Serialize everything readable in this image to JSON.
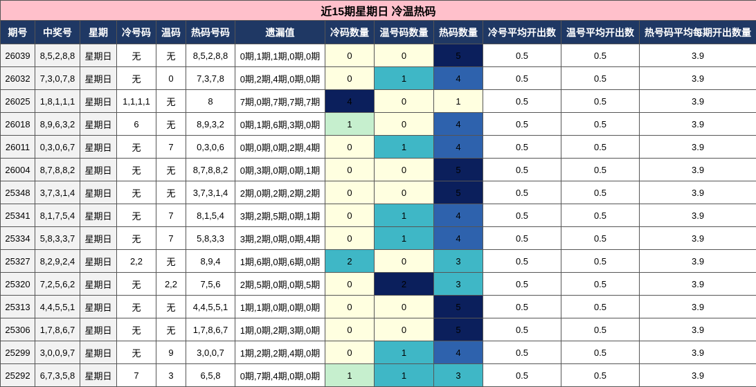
{
  "title": "近15期星期日 冷温热码",
  "headers": [
    "期号",
    "中奖号",
    "星期",
    "冷号码",
    "温码",
    "热码号码",
    "遗漏值",
    "冷码数量",
    "温号码数量",
    "热码数量",
    "冷号平均开出数",
    "温号平均开出数",
    "热号码平均每期开出数量"
  ],
  "colors": {
    "title_bg": "#ffc0cb",
    "header_bg": "#1f3864",
    "light_yellow": "#ffffe0",
    "light_green": "#c6efce",
    "teal": "#3fb7c6",
    "medium_blue": "#2e62ad",
    "dark_navy": "#0b1f5c"
  },
  "rows": [
    {
      "qi": "26039",
      "num": "8,5,2,8,8",
      "week": "星期日",
      "cold": "无",
      "warm": "无",
      "hot": "8,5,2,8,8",
      "miss": "0期,1期,1期,0期,0期",
      "cold_n": "0",
      "warm_n": "0",
      "hot_n": "5",
      "cold_avg": "0.5",
      "warm_avg": "0.5",
      "hot_avg": "3.9"
    },
    {
      "qi": "26032",
      "num": "7,3,0,7,8",
      "week": "星期日",
      "cold": "无",
      "warm": "0",
      "hot": "7,3,7,8",
      "miss": "0期,2期,4期,0期,0期",
      "cold_n": "0",
      "warm_n": "1",
      "hot_n": "4",
      "cold_avg": "0.5",
      "warm_avg": "0.5",
      "hot_avg": "3.9"
    },
    {
      "qi": "26025",
      "num": "1,8,1,1,1",
      "week": "星期日",
      "cold": "1,1,1,1",
      "warm": "无",
      "hot": "8",
      "miss": "7期,0期,7期,7期,7期",
      "cold_n": "4",
      "warm_n": "0",
      "hot_n": "1",
      "cold_avg": "0.5",
      "warm_avg": "0.5",
      "hot_avg": "3.9"
    },
    {
      "qi": "26018",
      "num": "8,9,6,3,2",
      "week": "星期日",
      "cold": "6",
      "warm": "无",
      "hot": "8,9,3,2",
      "miss": "0期,1期,6期,3期,0期",
      "cold_n": "1",
      "warm_n": "0",
      "hot_n": "4",
      "cold_avg": "0.5",
      "warm_avg": "0.5",
      "hot_avg": "3.9"
    },
    {
      "qi": "26011",
      "num": "0,3,0,6,7",
      "week": "星期日",
      "cold": "无",
      "warm": "7",
      "hot": "0,3,0,6",
      "miss": "0期,0期,0期,2期,4期",
      "cold_n": "0",
      "warm_n": "1",
      "hot_n": "4",
      "cold_avg": "0.5",
      "warm_avg": "0.5",
      "hot_avg": "3.9"
    },
    {
      "qi": "26004",
      "num": "8,7,8,8,2",
      "week": "星期日",
      "cold": "无",
      "warm": "无",
      "hot": "8,7,8,8,2",
      "miss": "0期,3期,0期,0期,1期",
      "cold_n": "0",
      "warm_n": "0",
      "hot_n": "5",
      "cold_avg": "0.5",
      "warm_avg": "0.5",
      "hot_avg": "3.9"
    },
    {
      "qi": "25348",
      "num": "3,7,3,1,4",
      "week": "星期日",
      "cold": "无",
      "warm": "无",
      "hot": "3,7,3,1,4",
      "miss": "2期,0期,2期,2期,2期",
      "cold_n": "0",
      "warm_n": "0",
      "hot_n": "5",
      "cold_avg": "0.5",
      "warm_avg": "0.5",
      "hot_avg": "3.9"
    },
    {
      "qi": "25341",
      "num": "8,1,7,5,4",
      "week": "星期日",
      "cold": "无",
      "warm": "7",
      "hot": "8,1,5,4",
      "miss": "3期,2期,5期,0期,1期",
      "cold_n": "0",
      "warm_n": "1",
      "hot_n": "4",
      "cold_avg": "0.5",
      "warm_avg": "0.5",
      "hot_avg": "3.9"
    },
    {
      "qi": "25334",
      "num": "5,8,3,3,7",
      "week": "星期日",
      "cold": "无",
      "warm": "7",
      "hot": "5,8,3,3",
      "miss": "3期,2期,0期,0期,4期",
      "cold_n": "0",
      "warm_n": "1",
      "hot_n": "4",
      "cold_avg": "0.5",
      "warm_avg": "0.5",
      "hot_avg": "3.9"
    },
    {
      "qi": "25327",
      "num": "8,2,9,2,4",
      "week": "星期日",
      "cold": "2,2",
      "warm": "无",
      "hot": "8,9,4",
      "miss": "1期,6期,0期,6期,0期",
      "cold_n": "2",
      "warm_n": "0",
      "hot_n": "3",
      "cold_avg": "0.5",
      "warm_avg": "0.5",
      "hot_avg": "3.9"
    },
    {
      "qi": "25320",
      "num": "7,2,5,6,2",
      "week": "星期日",
      "cold": "无",
      "warm": "2,2",
      "hot": "7,5,6",
      "miss": "2期,5期,0期,0期,5期",
      "cold_n": "0",
      "warm_n": "2",
      "hot_n": "3",
      "cold_avg": "0.5",
      "warm_avg": "0.5",
      "hot_avg": "3.9"
    },
    {
      "qi": "25313",
      "num": "4,4,5,5,1",
      "week": "星期日",
      "cold": "无",
      "warm": "无",
      "hot": "4,4,5,5,1",
      "miss": "1期,1期,0期,0期,0期",
      "cold_n": "0",
      "warm_n": "0",
      "hot_n": "5",
      "cold_avg": "0.5",
      "warm_avg": "0.5",
      "hot_avg": "3.9"
    },
    {
      "qi": "25306",
      "num": "1,7,8,6,7",
      "week": "星期日",
      "cold": "无",
      "warm": "无",
      "hot": "1,7,8,6,7",
      "miss": "1期,0期,2期,3期,0期",
      "cold_n": "0",
      "warm_n": "0",
      "hot_n": "5",
      "cold_avg": "0.5",
      "warm_avg": "0.5",
      "hot_avg": "3.9"
    },
    {
      "qi": "25299",
      "num": "3,0,0,9,7",
      "week": "星期日",
      "cold": "无",
      "warm": "9",
      "hot": "3,0,0,7",
      "miss": "1期,2期,2期,4期,0期",
      "cold_n": "0",
      "warm_n": "1",
      "hot_n": "4",
      "cold_avg": "0.5",
      "warm_avg": "0.5",
      "hot_avg": "3.9"
    },
    {
      "qi": "25292",
      "num": "6,7,3,5,8",
      "week": "星期日",
      "cold": "7",
      "warm": "3",
      "hot": "6,5,8",
      "miss": "0期,7期,4期,0期,0期",
      "cold_n": "1",
      "warm_n": "1",
      "hot_n": "3",
      "cold_avg": "0.5",
      "warm_avg": "0.5",
      "hot_avg": "3.9"
    }
  ]
}
